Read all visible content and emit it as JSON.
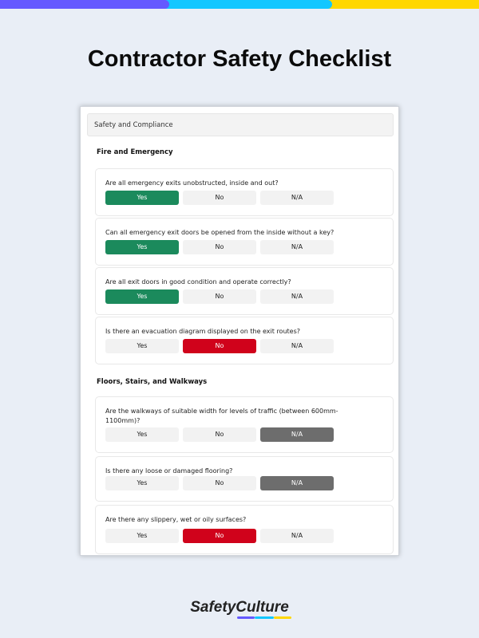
{
  "title": "Contractor Safety Checklist",
  "colors": {
    "purple": "#6559ff",
    "cyan": "#13c7ff",
    "yellow": "#ffd700",
    "yes": "#1b8a5c",
    "no": "#d0021b",
    "na": "#6d6d6d"
  },
  "header": "Safety and Compliance",
  "sections": [
    {
      "title": "Fire and Emergency",
      "questions": [
        {
          "text": "Are all emergency exits unobstructed, inside and out?",
          "selected": "Yes"
        },
        {
          "text": "Can all emergency exit doors be opened from the inside without a key?",
          "selected": "Yes"
        },
        {
          "text": "Are all exit doors in good condition and operate correctly?",
          "selected": "Yes"
        },
        {
          "text": "Is there an evacuation diagram displayed on the exit routes?",
          "selected": "No"
        }
      ]
    },
    {
      "title": "Floors, Stairs, and Walkways",
      "questions": [
        {
          "text": "Are the walkways of suitable width for levels of traffic (between 600mm-1100mm)?",
          "selected": "N/A"
        },
        {
          "text": "Is there any loose or damaged flooring?",
          "selected": "N/A"
        },
        {
          "text": "Are there any slippery, wet or oily surfaces?",
          "selected": "No"
        }
      ]
    }
  ],
  "options": [
    "Yes",
    "No",
    "N/A"
  ],
  "logo": "SafetyCulture"
}
